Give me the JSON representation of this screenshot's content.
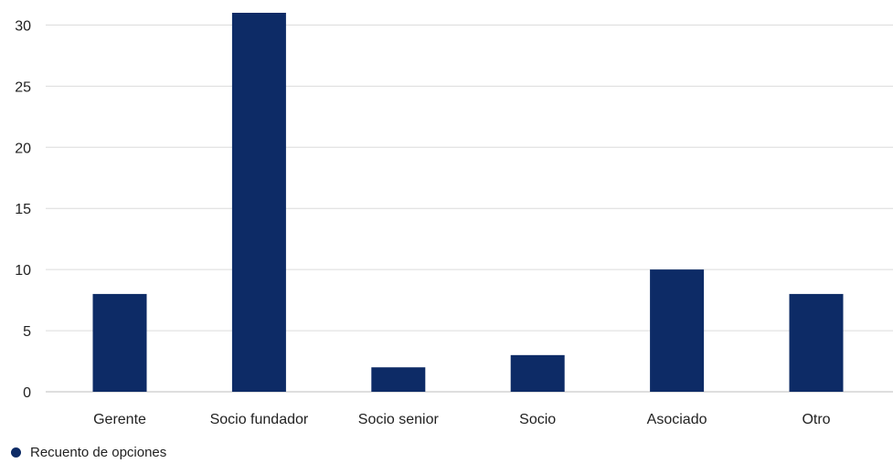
{
  "chart_data": {
    "type": "bar",
    "categories": [
      "Gerente",
      "Socio fundador",
      "Socio senior",
      "Socio",
      "Asociado",
      "Otro"
    ],
    "series": [
      {
        "name": "Recuento de opciones",
        "values": [
          8,
          31,
          2,
          3,
          10,
          8
        ],
        "color": "#0d2b66"
      }
    ],
    "ylim": [
      0,
      31
    ],
    "yticks": [
      0,
      5,
      10,
      15,
      20,
      25,
      30
    ],
    "grid": true,
    "legend_position": "bottom-left",
    "title": "",
    "xlabel": "",
    "ylabel": ""
  }
}
